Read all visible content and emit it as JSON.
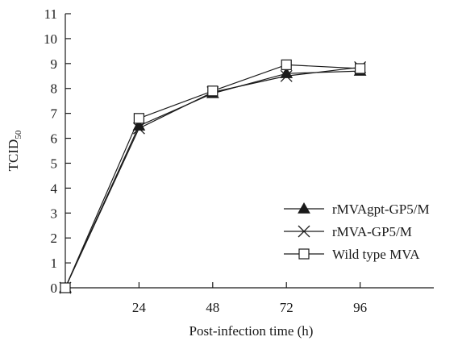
{
  "chart_data": {
    "type": "line",
    "xlabel": "Post-infection time (h)",
    "ylabel": {
      "base": "TCID",
      "sub": "50"
    },
    "x": [
      0,
      24,
      48,
      72,
      96
    ],
    "x_tick_labels": [
      "24",
      "48",
      "72",
      "96"
    ],
    "xlim": [
      0,
      120
    ],
    "ylim": [
      0,
      11
    ],
    "y_ticks": [
      0,
      1,
      2,
      3,
      4,
      5,
      6,
      7,
      8,
      9,
      10,
      11
    ],
    "grid": false,
    "legend_position": "lower-right",
    "series": [
      {
        "name": "rMVAgpt-GP5/M",
        "marker": "filled-triangle",
        "values": [
          0,
          6.5,
          7.8,
          8.6,
          8.7
        ]
      },
      {
        "name": "rMVA-GP5/M",
        "marker": "x-cross",
        "values": [
          0,
          6.4,
          7.85,
          8.5,
          8.85
        ]
      },
      {
        "name": "Wild type MVA",
        "marker": "open-square",
        "values": [
          0,
          6.8,
          7.9,
          8.95,
          8.8
        ]
      }
    ],
    "colors": {
      "line": "#1a1a1a",
      "background": "#ffffff"
    }
  }
}
